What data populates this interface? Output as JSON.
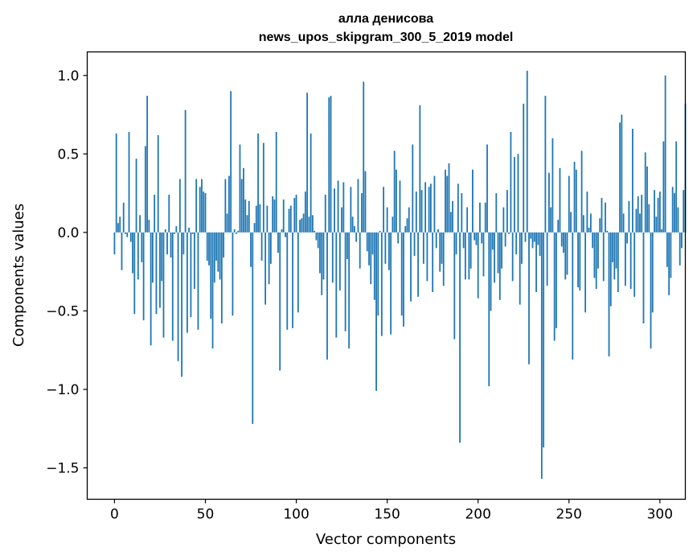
{
  "chart_data": {
    "type": "bar",
    "title": "алла денисова",
    "subtitle": "news_upos_skipgram_300_5_2019 model",
    "xlabel": "Vector components",
    "ylabel": "Components values",
    "xlim": [
      -15,
      314
    ],
    "ylim": [
      -1.7,
      1.15
    ],
    "xticks": [
      0,
      50,
      100,
      150,
      200,
      250,
      300
    ],
    "xtick_labels": [
      "0",
      "50",
      "100",
      "150",
      "200",
      "250",
      "300"
    ],
    "yticks": [
      -1.5,
      -1.0,
      -0.5,
      0.0,
      0.5,
      1.0
    ],
    "ytick_labels": [
      "−1.5",
      "−1.0",
      "−0.5",
      "0.0",
      "0.5",
      "1.0"
    ],
    "bar_color": "#1f77b4",
    "grid": false,
    "values": [
      -0.14,
      0.63,
      0.06,
      0.1,
      -0.24,
      0.19,
      -0.01,
      -0.03,
      0.64,
      -0.06,
      -0.26,
      -0.52,
      0.47,
      -0.3,
      0.11,
      -0.19,
      -0.56,
      0.55,
      0.87,
      0.08,
      -0.72,
      -0.32,
      0.24,
      -0.52,
      0.62,
      -0.48,
      -0.31,
      -0.67,
      0.02,
      -0.14,
      0.24,
      -0.16,
      -0.69,
      -0.01,
      0.04,
      -0.82,
      0.34,
      -0.92,
      -0.14,
      0.78,
      -0.64,
      0.03,
      -0.54,
      -0.01,
      -0.36,
      0.34,
      -0.62,
      0.29,
      0.34,
      0.26,
      0.25,
      -0.18,
      -0.21,
      -0.55,
      -0.74,
      -0.32,
      -0.18,
      -0.25,
      -0.3,
      -0.58,
      -0.16,
      0.34,
      0.12,
      0.36,
      0.9,
      -0.53,
      0.02,
      -0.01,
      0.01,
      0.56,
      0.34,
      0.41,
      0.21,
      0.11,
      0.2,
      -0.22,
      -1.22,
      0.06,
      0.17,
      0.63,
      0.18,
      -0.18,
      0.57,
      -0.46,
      0.17,
      -0.33,
      -0.2,
      0.23,
      0.21,
      0.64,
      -0.13,
      -0.88,
      0.02,
      0.21,
      -0.03,
      -0.62,
      0.15,
      0.17,
      -0.61,
      0.22,
      0.24,
      -0.51,
      0.08,
      0.09,
      0.12,
      0.26,
      0.89,
      0.1,
      0.63,
      0.11,
      0.01,
      -0.05,
      -0.1,
      -0.26,
      -0.4,
      -0.3,
      0.24,
      -0.81,
      0.86,
      0.87,
      -0.32,
      0.28,
      -0.67,
      0.33,
      -0.37,
      0.16,
      0.32,
      -0.63,
      -0.17,
      -0.74,
      0.29,
      0.1,
      0.04,
      -0.06,
      0.34,
      -0.23,
      0.25,
      0.96,
      0.39,
      -0.12,
      -0.21,
      -0.33,
      -0.14,
      -0.43,
      -1.01,
      -0.53,
      0.01,
      -0.66,
      0.29,
      -0.2,
      0.16,
      -0.24,
      -0.65,
      0.1,
      0.52,
      0.4,
      -0.07,
      0.33,
      -0.53,
      -0.6,
      0.04,
      0.09,
      0.16,
      -0.44,
      0.56,
      -0.15,
      0.26,
      -0.41,
      0.81,
      0.27,
      -0.2,
      0.32,
      -0.31,
      0.29,
      0.31,
      -0.38,
      0.36,
      -0.1,
      0.02,
      -0.25,
      -0.2,
      -0.34,
      0.4,
      0.36,
      0.44,
      0.13,
      0.2,
      -0.68,
      -0.14,
      0.31,
      -1.34,
      0.25,
      -0.1,
      -0.3,
      0.16,
      -0.3,
      -0.23,
      0.4,
      -0.05,
      -0.08,
      -0.42,
      0.19,
      -0.07,
      -0.28,
      0.19,
      0.56,
      -0.98,
      -0.5,
      -0.11,
      -0.32,
      0.25,
      -0.26,
      -0.43,
      -0.23,
      0.16,
      -0.09,
      0.27,
      -0.01,
      0.64,
      -0.31,
      0.48,
      -0.14,
      0.5,
      -0.46,
      -0.2,
      0.82,
      -0.06,
      1.03,
      -0.84,
      -0.04,
      -0.1,
      -0.06,
      -0.38,
      -0.08,
      -0.15,
      -1.57,
      -1.37,
      0.87,
      -0.34,
      0.38,
      0.16,
      0.6,
      -0.69,
      -0.61,
      0.08,
      0.41,
      -0.09,
      -0.13,
      -0.3,
      -0.27,
      0.36,
      0.13,
      -0.81,
      0.45,
      0.4,
      -0.35,
      -0.37,
      0.52,
      0.11,
      -0.51,
      0.26,
      0.03,
      0.12,
      -0.1,
      -0.29,
      -0.36,
      -0.23,
      0.09,
      0.22,
      -0.31,
      0.19,
      0.01,
      -0.79,
      -0.47,
      -0.19,
      -0.3,
      -0.23,
      -0.38,
      0.7,
      0.75,
      0.12,
      -0.34,
      -0.07,
      0.2,
      -0.36,
      0.66,
      -0.41,
      0.15,
      0.23,
      0.12,
      0.24,
      -0.58,
      0.51,
      0.42,
      0.18,
      -0.74,
      -0.51,
      0.27,
      0.1,
      0.22,
      0.26,
      0.02,
      0.58,
      1.0,
      -0.22,
      -0.4,
      -0.29,
      0.29,
      0.25,
      0.58,
      0.16,
      -0.21,
      -0.1,
      0.27,
      0.82
    ]
  }
}
